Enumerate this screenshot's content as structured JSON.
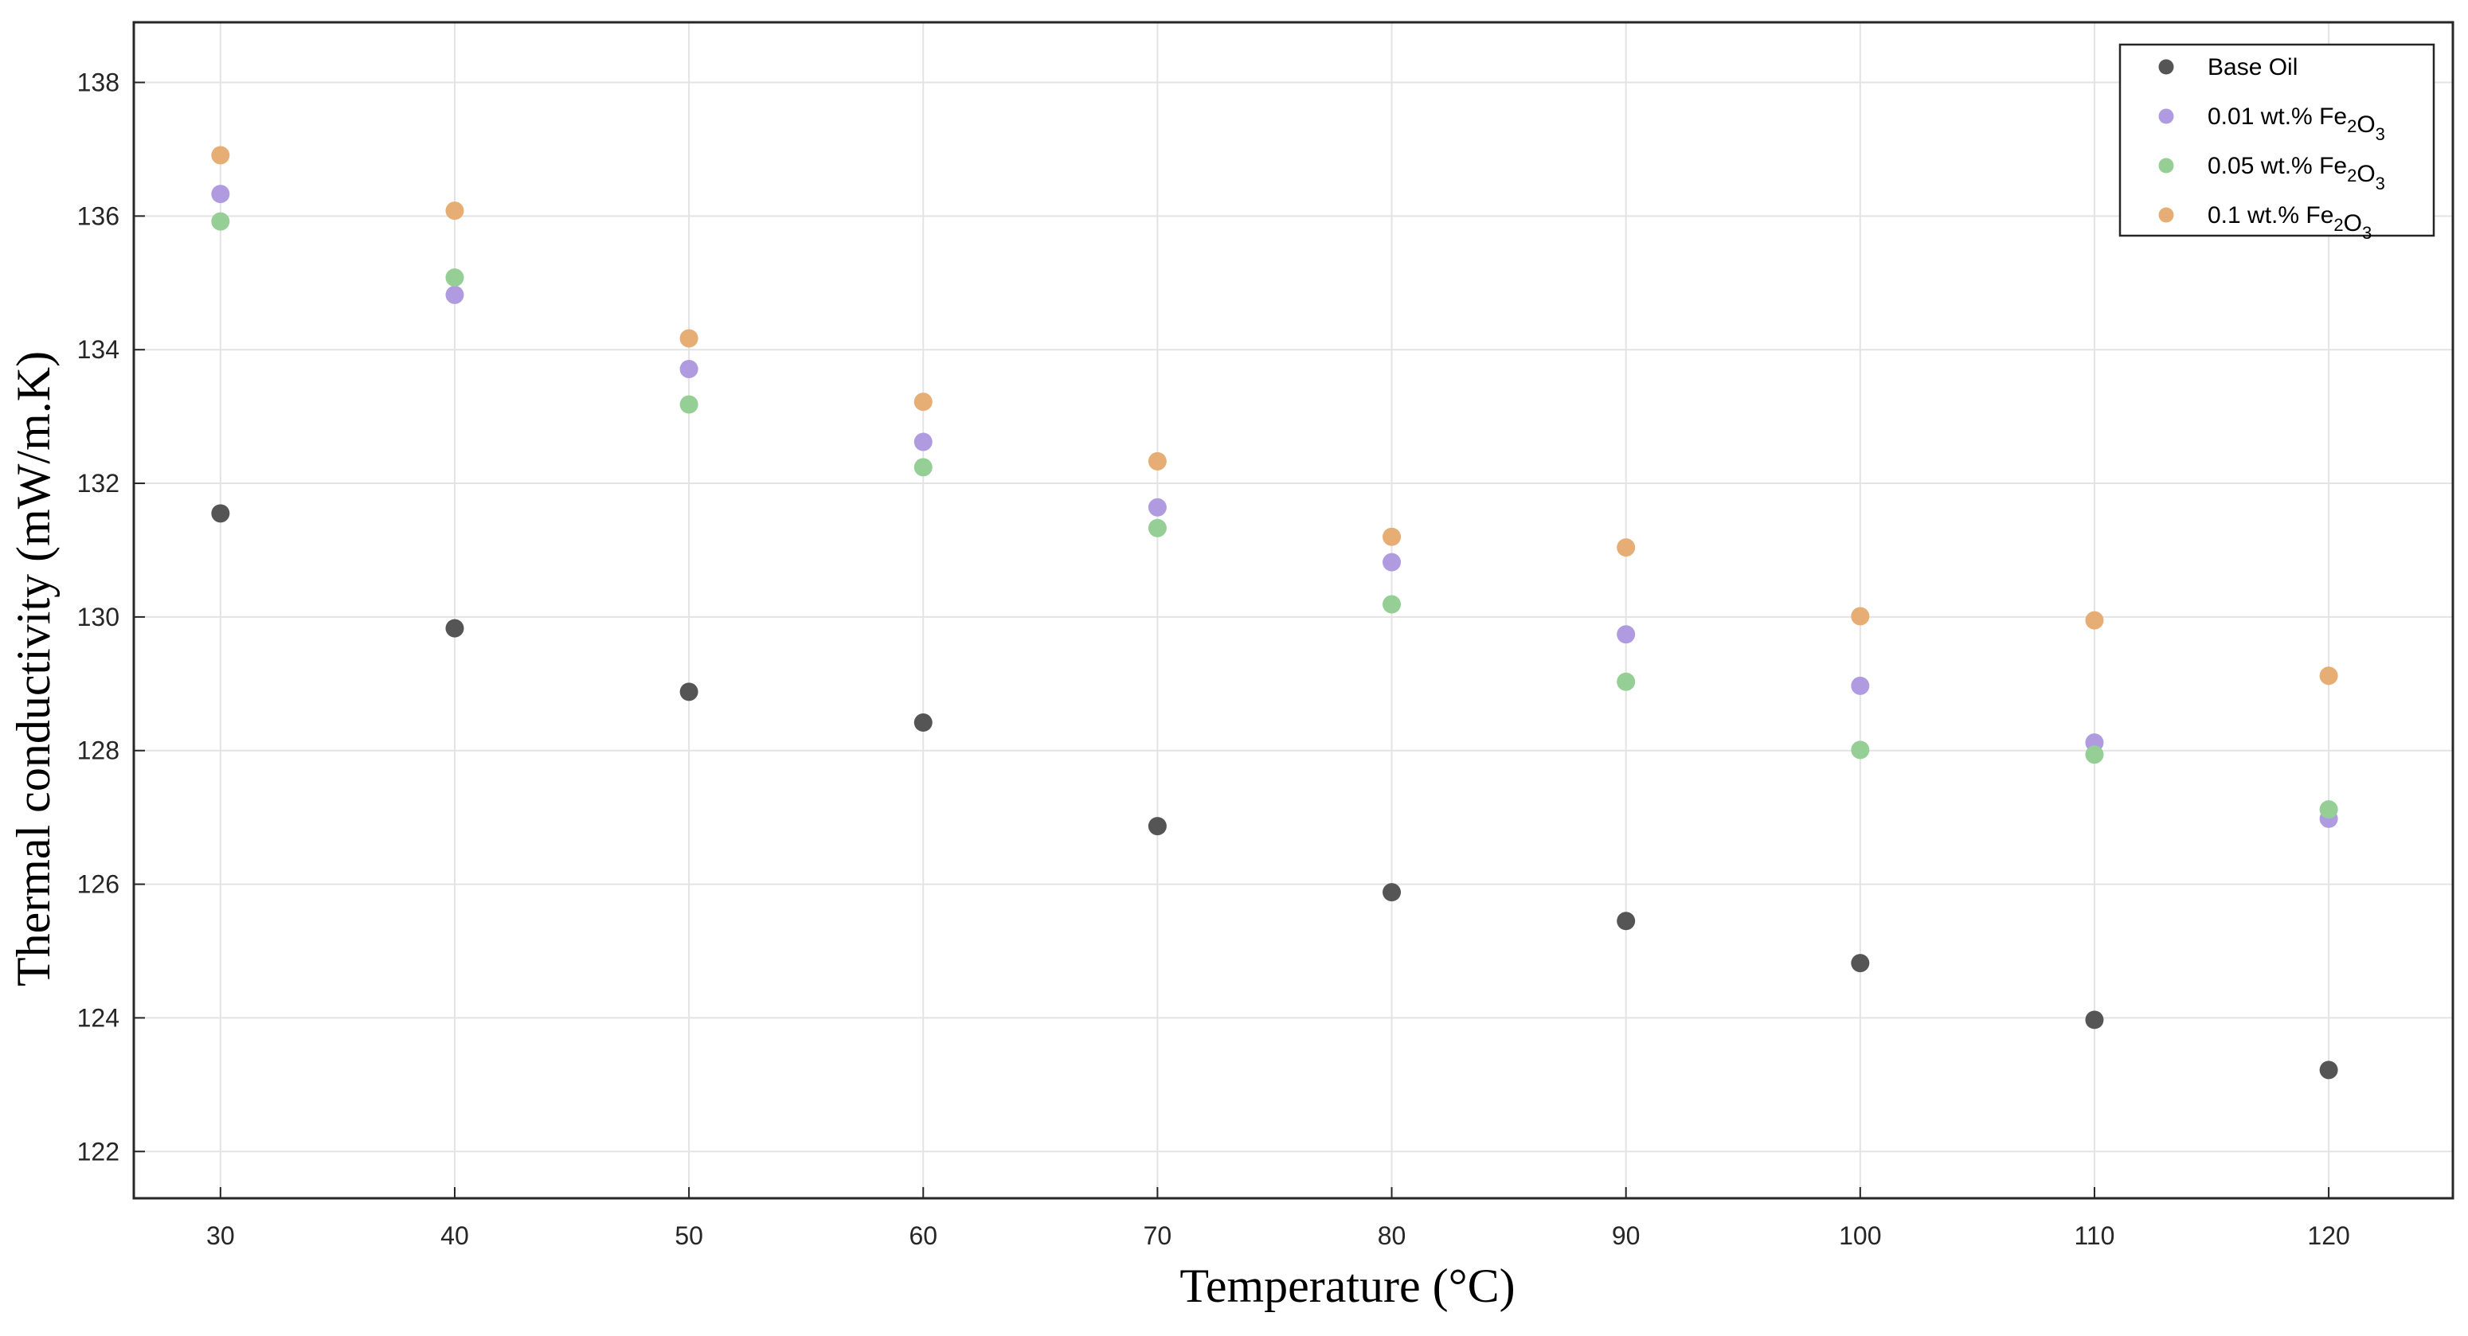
{
  "chart_data": {
    "type": "scatter",
    "xlabel": "Temperature (°C)",
    "ylabel": "Thermal conductivity (mW/m.K)",
    "xlim": [
      26.3,
      125.3
    ],
    "ylim": [
      121.3,
      138.9
    ],
    "xticks": [
      30,
      40,
      50,
      60,
      70,
      80,
      90,
      100,
      110,
      120
    ],
    "yticks": [
      122,
      124,
      126,
      128,
      130,
      132,
      134,
      136,
      138
    ],
    "grid": true,
    "legend_position": "top-right",
    "x": [
      30,
      40,
      50,
      60,
      70,
      80,
      90,
      100,
      110,
      120
    ],
    "series": [
      {
        "name": "Base Oil",
        "name_parts": [
          {
            "t": "Base Oil",
            "sub": false
          }
        ],
        "color": "#555555",
        "values": [
          131.55,
          129.83,
          128.88,
          128.42,
          126.87,
          125.88,
          125.45,
          124.82,
          123.97,
          123.22
        ]
      },
      {
        "name": "0.01 wt.% Fe2O3",
        "name_parts": [
          {
            "t": "0.01 wt.% Fe",
            "sub": false
          },
          {
            "t": "2",
            "sub": true
          },
          {
            "t": "O",
            "sub": false
          },
          {
            "t": "3",
            "sub": true
          }
        ],
        "color": "#b09be0",
        "values": [
          136.33,
          134.82,
          133.71,
          132.62,
          131.64,
          130.82,
          129.74,
          128.97,
          128.12,
          126.98
        ]
      },
      {
        "name": "0.05 wt.% Fe2O3",
        "name_parts": [
          {
            "t": "0.05 wt.% Fe",
            "sub": false
          },
          {
            "t": "2",
            "sub": true
          },
          {
            "t": "O",
            "sub": false
          },
          {
            "t": "3",
            "sub": true
          }
        ],
        "color": "#95cf95",
        "values": [
          135.92,
          135.08,
          133.18,
          132.24,
          131.33,
          130.19,
          129.03,
          128.01,
          127.94,
          127.12
        ]
      },
      {
        "name": "0.1 wt.% Fe2O3",
        "name_parts": [
          {
            "t": "0.1 wt.% Fe",
            "sub": false
          },
          {
            "t": "2",
            "sub": true
          },
          {
            "t": "O",
            "sub": false
          },
          {
            "t": "3",
            "sub": true
          }
        ],
        "color": "#e6ad75",
        "values": [
          136.91,
          136.08,
          134.17,
          133.22,
          132.33,
          131.2,
          131.04,
          130.01,
          129.95,
          129.12
        ]
      }
    ]
  }
}
